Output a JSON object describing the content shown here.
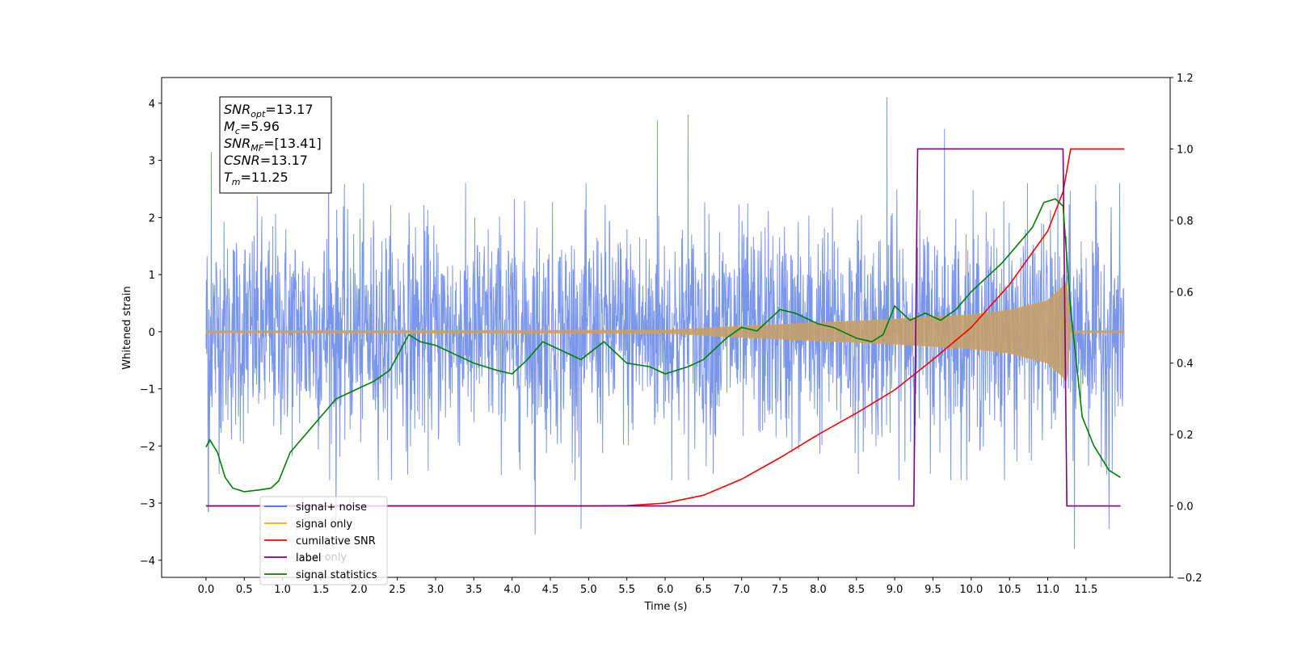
{
  "chart_data": {
    "type": "line",
    "title": "",
    "xlabel": "Time (s)",
    "ylabel": "Whitened strain",
    "y2label": "",
    "xlim": [
      -0.58,
      12.6
    ],
    "ylim": [
      -4.3,
      4.45
    ],
    "y2lim": [
      -0.2,
      1.2
    ],
    "grid": false,
    "x_ticks": [
      0.0,
      0.5,
      1.0,
      1.5,
      2.0,
      2.5,
      3.0,
      3.5,
      4.0,
      4.5,
      5.0,
      5.5,
      6.0,
      6.5,
      7.0,
      7.5,
      8.0,
      8.5,
      9.0,
      9.5,
      10.0,
      10.5,
      11.0,
      11.5
    ],
    "x_tick_labels": [
      "0.0",
      "0.5",
      "1.0",
      "1.5",
      "2.0",
      "2.5",
      "3.0",
      "3.5",
      "4.0",
      "4.5",
      "5.0",
      "5.5",
      "6.0",
      "6.5",
      "7.0",
      "7.5",
      "8.0",
      "8.5",
      "9.0",
      "9.5",
      "10.0",
      "10.5",
      "11.0",
      "11.5"
    ],
    "y_ticks": [
      -4,
      -3,
      -2,
      -1,
      0,
      1,
      2,
      3,
      4
    ],
    "y_tick_labels": [
      "−4",
      "−3",
      "−2",
      "−1",
      "0",
      "1",
      "2",
      "3",
      "4"
    ],
    "y2_ticks": [
      -0.2,
      0.0,
      0.2,
      0.4,
      0.6,
      0.8,
      1.0,
      1.2
    ],
    "y2_tick_labels": [
      "−0.2",
      "0.0",
      "0.2",
      "0.4",
      "0.6",
      "0.8",
      "1.0",
      "1.2"
    ],
    "annotation": {
      "lines": [
        {
          "sym": "SNR",
          "sub": "opt",
          "value": "=13.17"
        },
        {
          "sym": "M",
          "sub": "c",
          "value": "=5.96"
        },
        {
          "sym": "SNR",
          "sub": "MF",
          "value": "=[13.41]"
        },
        {
          "sym": "CSNR",
          "sub": "",
          "value": "=13.17"
        },
        {
          "sym": "T",
          "sub": "m",
          "value": "=11.25"
        }
      ]
    },
    "legend": {
      "placement": "lower-left",
      "entries": [
        {
          "label": "signal+ noise",
          "color": "#4169e1"
        },
        {
          "label": "signal only",
          "color": "#ffa500"
        },
        {
          "label": "cumilative SNR",
          "color": "#ff0000"
        },
        {
          "label": "label",
          "color": "#800080"
        },
        {
          "label": "signal statistics",
          "color": "#008000"
        }
      ],
      "hidden_text": "label only"
    },
    "series": [
      {
        "name": "signal+ noise",
        "axis": "left",
        "color": "#4169e1",
        "style": "noise",
        "x_range": [
          0.0,
          12.0
        ],
        "envelope_typical": [
          -2.2,
          2.2
        ],
        "extremes": [
          {
            "x": 0.03,
            "y": -3.15
          },
          {
            "x": 0.07,
            "y": 3.15
          },
          {
            "x": 1.6,
            "y": 3.3
          },
          {
            "x": 4.3,
            "y": -3.55
          },
          {
            "x": 4.9,
            "y": -3.45
          },
          {
            "x": 5.9,
            "y": 3.7
          },
          {
            "x": 6.3,
            "y": 3.8
          },
          {
            "x": 8.9,
            "y": 4.1
          },
          {
            "x": 9.65,
            "y": 3.55
          },
          {
            "x": 11.35,
            "y": -3.8
          },
          {
            "x": 11.8,
            "y": -3.45
          },
          {
            "x": 1.7,
            "y": -3.5
          }
        ]
      },
      {
        "name": "signal only",
        "axis": "left",
        "color": "#ffa500",
        "style": "chirp",
        "x_range": [
          0.0,
          12.0
        ],
        "envelope": [
          {
            "x": 0.0,
            "y": 0.02
          },
          {
            "x": 6.0,
            "y": 0.03
          },
          {
            "x": 7.0,
            "y": 0.1
          },
          {
            "x": 8.0,
            "y": 0.16
          },
          {
            "x": 9.0,
            "y": 0.22
          },
          {
            "x": 10.0,
            "y": 0.3
          },
          {
            "x": 10.5,
            "y": 0.38
          },
          {
            "x": 11.0,
            "y": 0.55
          },
          {
            "x": 11.2,
            "y": 0.8
          },
          {
            "x": 11.25,
            "y": 0.9
          },
          {
            "x": 11.3,
            "y": 0.02
          },
          {
            "x": 12.0,
            "y": 0.02
          }
        ]
      },
      {
        "name": "cumilative SNR",
        "axis": "right",
        "color": "#ff0000",
        "points": [
          {
            "x": 0.0,
            "y": 0.0
          },
          {
            "x": 5.0,
            "y": 0.0
          },
          {
            "x": 5.5,
            "y": 0.001
          },
          {
            "x": 6.0,
            "y": 0.008
          },
          {
            "x": 6.5,
            "y": 0.03
          },
          {
            "x": 7.0,
            "y": 0.075
          },
          {
            "x": 7.5,
            "y": 0.135
          },
          {
            "x": 8.0,
            "y": 0.2
          },
          {
            "x": 8.5,
            "y": 0.26
          },
          {
            "x": 9.0,
            "y": 0.325
          },
          {
            "x": 9.5,
            "y": 0.41
          },
          {
            "x": 10.0,
            "y": 0.5
          },
          {
            "x": 10.5,
            "y": 0.62
          },
          {
            "x": 11.0,
            "y": 0.77
          },
          {
            "x": 11.2,
            "y": 0.88
          },
          {
            "x": 11.3,
            "y": 1.0
          },
          {
            "x": 12.0,
            "y": 1.0
          }
        ]
      },
      {
        "name": "label",
        "axis": "right",
        "color": "#800080",
        "points": [
          {
            "x": 0.0,
            "y": 0.0
          },
          {
            "x": 9.25,
            "y": 0.0
          },
          {
            "x": 9.3,
            "y": 1.0
          },
          {
            "x": 11.2,
            "y": 1.0
          },
          {
            "x": 11.25,
            "y": 0.0
          },
          {
            "x": 11.95,
            "y": 0.0
          }
        ]
      },
      {
        "name": "signal statistics",
        "axis": "right",
        "color": "#008000",
        "points": [
          {
            "x": 0.0,
            "y": 0.165
          },
          {
            "x": 0.05,
            "y": 0.185
          },
          {
            "x": 0.15,
            "y": 0.15
          },
          {
            "x": 0.25,
            "y": 0.08
          },
          {
            "x": 0.35,
            "y": 0.05
          },
          {
            "x": 0.5,
            "y": 0.04
          },
          {
            "x": 0.7,
            "y": 0.045
          },
          {
            "x": 0.85,
            "y": 0.05
          },
          {
            "x": 0.95,
            "y": 0.07
          },
          {
            "x": 1.1,
            "y": 0.15
          },
          {
            "x": 1.3,
            "y": 0.2
          },
          {
            "x": 1.5,
            "y": 0.25
          },
          {
            "x": 1.7,
            "y": 0.3
          },
          {
            "x": 1.9,
            "y": 0.32
          },
          {
            "x": 2.0,
            "y": 0.33
          },
          {
            "x": 2.2,
            "y": 0.35
          },
          {
            "x": 2.4,
            "y": 0.38
          },
          {
            "x": 2.5,
            "y": 0.42
          },
          {
            "x": 2.65,
            "y": 0.48
          },
          {
            "x": 2.8,
            "y": 0.46
          },
          {
            "x": 3.0,
            "y": 0.45
          },
          {
            "x": 3.2,
            "y": 0.43
          },
          {
            "x": 3.5,
            "y": 0.4
          },
          {
            "x": 3.8,
            "y": 0.38
          },
          {
            "x": 4.0,
            "y": 0.37
          },
          {
            "x": 4.2,
            "y": 0.41
          },
          {
            "x": 4.4,
            "y": 0.46
          },
          {
            "x": 4.6,
            "y": 0.44
          },
          {
            "x": 4.9,
            "y": 0.41
          },
          {
            "x": 5.2,
            "y": 0.46
          },
          {
            "x": 5.5,
            "y": 0.4
          },
          {
            "x": 5.8,
            "y": 0.39
          },
          {
            "x": 6.0,
            "y": 0.37
          },
          {
            "x": 6.3,
            "y": 0.39
          },
          {
            "x": 6.5,
            "y": 0.41
          },
          {
            "x": 6.8,
            "y": 0.47
          },
          {
            "x": 7.0,
            "y": 0.5
          },
          {
            "x": 7.2,
            "y": 0.49
          },
          {
            "x": 7.5,
            "y": 0.55
          },
          {
            "x": 7.7,
            "y": 0.54
          },
          {
            "x": 8.0,
            "y": 0.51
          },
          {
            "x": 8.2,
            "y": 0.5
          },
          {
            "x": 8.5,
            "y": 0.47
          },
          {
            "x": 8.7,
            "y": 0.46
          },
          {
            "x": 8.85,
            "y": 0.48
          },
          {
            "x": 9.0,
            "y": 0.56
          },
          {
            "x": 9.2,
            "y": 0.52
          },
          {
            "x": 9.4,
            "y": 0.54
          },
          {
            "x": 9.6,
            "y": 0.52
          },
          {
            "x": 9.8,
            "y": 0.55
          },
          {
            "x": 10.0,
            "y": 0.6
          },
          {
            "x": 10.2,
            "y": 0.64
          },
          {
            "x": 10.4,
            "y": 0.68
          },
          {
            "x": 10.6,
            "y": 0.73
          },
          {
            "x": 10.8,
            "y": 0.78
          },
          {
            "x": 10.95,
            "y": 0.85
          },
          {
            "x": 11.1,
            "y": 0.86
          },
          {
            "x": 11.2,
            "y": 0.84
          },
          {
            "x": 11.3,
            "y": 0.55
          },
          {
            "x": 11.45,
            "y": 0.25
          },
          {
            "x": 11.6,
            "y": 0.17
          },
          {
            "x": 11.8,
            "y": 0.1
          },
          {
            "x": 11.95,
            "y": 0.08
          }
        ]
      }
    ]
  }
}
